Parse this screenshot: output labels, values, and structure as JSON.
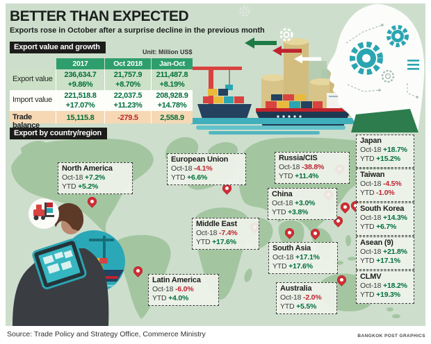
{
  "header": {
    "title": "BETTER THAN EXPECTED",
    "subtitle": "Exports rose in October after a surprise decline in the previous month"
  },
  "table_section": {
    "title": "Export value and growth",
    "unit": "Unit: Million US$",
    "columns": [
      "2017",
      "Oct 2018",
      "Jan-Oct 2018"
    ],
    "rows": [
      {
        "label": "Export value",
        "values": [
          "236,634.7",
          "21,757.9",
          "211,487.8"
        ],
        "growth": [
          "+9.86%",
          "+8.70%",
          "+8.19%"
        ]
      },
      {
        "label": "Import value",
        "values": [
          "221,518.8",
          "22,037.5",
          "208,928.9"
        ],
        "growth": [
          "+17.07%",
          "+11.23%",
          "+14.78%"
        ]
      },
      {
        "label": "Trade balance",
        "values": [
          "15,115.8",
          "-279.5",
          "2,558.9"
        ],
        "growth": [
          "",
          "",
          ""
        ]
      }
    ]
  },
  "map_section": {
    "title": "Export by country/region"
  },
  "labels": {
    "oct": "Oct-18",
    "ytd": "YTD"
  },
  "regions": [
    {
      "name": "North America",
      "oct": "+7.2%",
      "ytd": "+5.2%"
    },
    {
      "name": "European Union",
      "oct": "-4.1%",
      "ytd": "+6.6%"
    },
    {
      "name": "Russia/CIS",
      "oct": "-38.8%",
      "ytd": "+11.4%"
    },
    {
      "name": "China",
      "oct": "+3.0%",
      "ytd": "+3.8%"
    },
    {
      "name": "Middle East",
      "oct": "-7.4%",
      "ytd": "+17.6%"
    },
    {
      "name": "South Asia",
      "oct": "+17.1%",
      "ytd": "+17.6%"
    },
    {
      "name": "Latin America",
      "oct": "-6.0%",
      "ytd": "+4.0%"
    },
    {
      "name": "Australia",
      "oct": "-2.0%",
      "ytd": "+5.5%"
    },
    {
      "name": "Japan",
      "oct": "+18.7%",
      "ytd": "+15.2%"
    },
    {
      "name": "Taiwan",
      "oct": "-4.5%",
      "ytd": "-1.0%"
    },
    {
      "name": "South Korea",
      "oct": "+14.3%",
      "ytd": "+6.7%"
    },
    {
      "name": "Asean (9)",
      "oct": "+21.8%",
      "ytd": "+17.1%"
    },
    {
      "name": "CLMV",
      "oct": "+18.2%",
      "ytd": "+19.3%"
    }
  ],
  "footer": {
    "source": "Source: Trade Policy and Strategy Office, Commerce Ministry",
    "credit": "BANGKOK POST GRAPHICS"
  },
  "colors": {
    "positive": "#006f3c",
    "negative": "#bf2330",
    "header_green": "#2f9e6d",
    "row_green": "#cce1c8",
    "row_peach": "#f6d8b4",
    "pin_red": "#ce2f35",
    "teal": "#2ba5b2",
    "panel_bg": "#cedecd",
    "land_green": "#a3c6a0"
  },
  "chart_data": [
    {
      "type": "table",
      "title": "Export value and growth",
      "unit": "Million US$",
      "columns": [
        "2017",
        "Oct 2018",
        "Jan-Oct 2018"
      ],
      "rows": [
        {
          "label": "Export value",
          "values": [
            236634.7,
            21757.9,
            211487.8
          ],
          "growth_pct": [
            9.86,
            8.7,
            8.19
          ]
        },
        {
          "label": "Import value",
          "values": [
            221518.8,
            22037.5,
            208928.9
          ],
          "growth_pct": [
            17.07,
            11.23,
            14.78
          ]
        },
        {
          "label": "Trade balance",
          "values": [
            15115.8,
            -279.5,
            2558.9
          ]
        }
      ]
    },
    {
      "type": "table",
      "title": "Export by country/region (growth %)",
      "categories": [
        "North America",
        "European Union",
        "Russia/CIS",
        "China",
        "Middle East",
        "South Asia",
        "Latin America",
        "Australia",
        "Japan",
        "Taiwan",
        "South Korea",
        "Asean (9)",
        "CLMV"
      ],
      "series": [
        {
          "name": "Oct-18",
          "values": [
            7.2,
            -4.1,
            -38.8,
            3.0,
            -7.4,
            17.1,
            -6.0,
            -2.0,
            18.7,
            -4.5,
            14.3,
            21.8,
            18.2
          ]
        },
        {
          "name": "YTD",
          "values": [
            5.2,
            6.6,
            11.4,
            3.8,
            17.6,
            17.6,
            4.0,
            5.5,
            15.2,
            -1.0,
            6.7,
            17.1,
            19.3
          ]
        }
      ]
    }
  ]
}
